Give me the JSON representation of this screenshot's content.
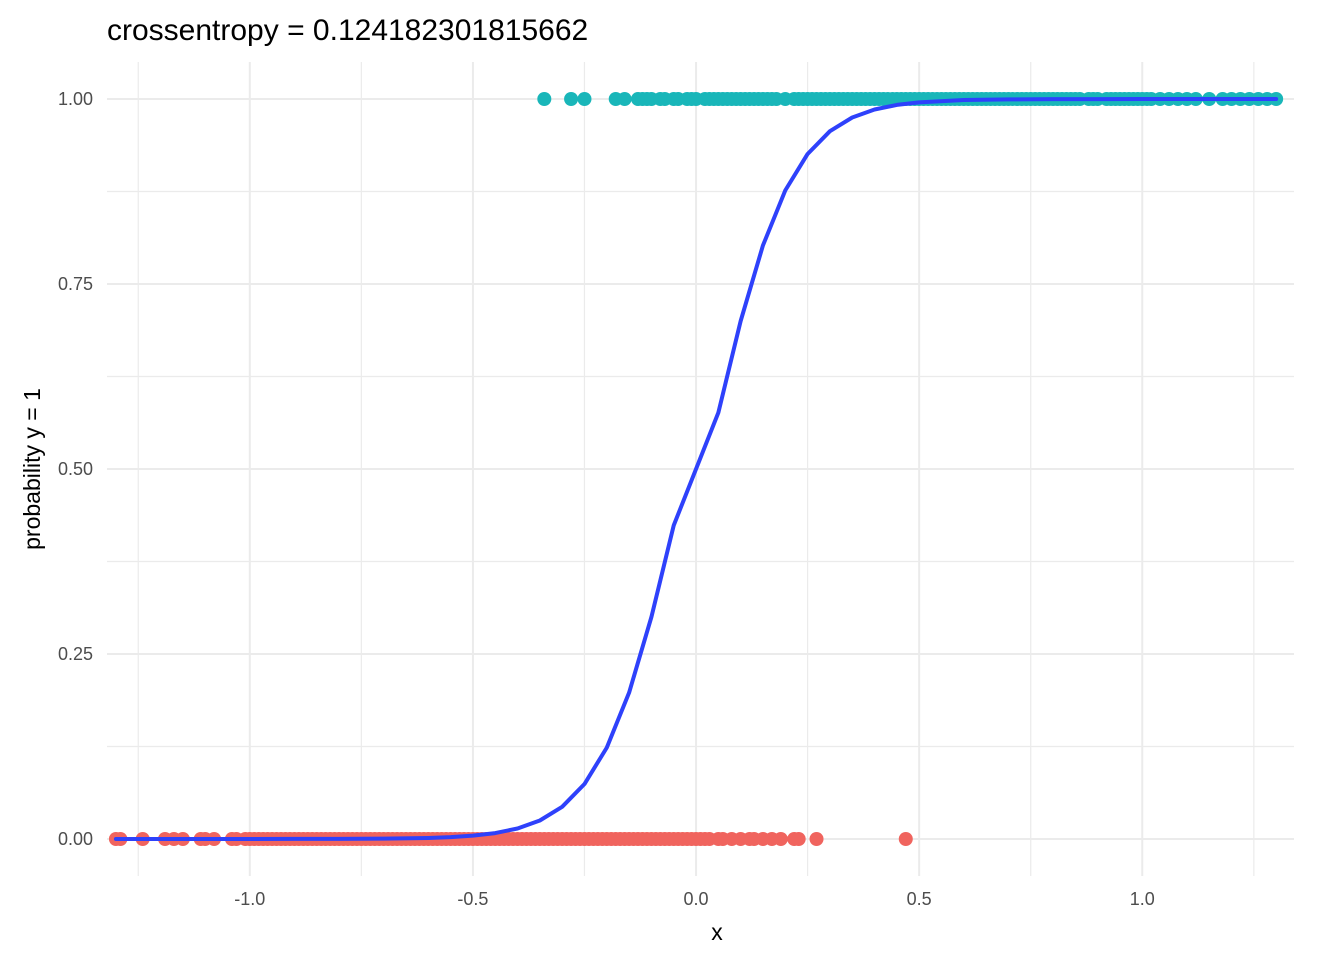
{
  "chart_data": {
    "type": "scatter",
    "title": "crossentropy = 0.124182301815662",
    "xlabel": "x",
    "ylabel": "probability y = 1",
    "xlim": [
      -1.32,
      1.34
    ],
    "ylim": [
      -0.05,
      1.05
    ],
    "x_ticks": [
      -1.0,
      -0.5,
      0.0,
      0.5,
      1.0
    ],
    "x_tick_labels": [
      "-1.0",
      "-0.5",
      "0.0",
      "0.5",
      "1.0"
    ],
    "y_ticks": [
      0.0,
      0.25,
      0.5,
      0.75,
      1.0
    ],
    "y_tick_labels": [
      "0.00",
      "0.25",
      "0.50",
      "0.75",
      "1.00"
    ],
    "grid": true,
    "legend": "none",
    "colors": {
      "class_1": "#19B6B9",
      "class_0": "#F0645E",
      "curve": "#2E41FB",
      "grid": "#EBEBEB"
    },
    "series": [
      {
        "kind": "points",
        "y": 1,
        "x": [
          -0.34,
          -0.28,
          -0.25,
          -0.18,
          -0.16,
          -0.13,
          -0.12,
          -0.11,
          -0.1,
          -0.08,
          -0.07,
          -0.05,
          -0.04,
          -0.02,
          -0.01,
          0.0,
          0.02,
          0.03,
          0.04,
          0.05,
          0.06,
          0.07,
          0.08,
          0.09,
          0.1,
          0.11,
          0.12,
          0.13,
          0.14,
          0.15,
          0.16,
          0.17,
          0.18,
          0.2,
          0.22,
          0.23,
          0.24,
          0.25,
          0.26,
          0.27,
          0.28,
          0.29,
          0.3,
          0.31,
          0.32,
          0.33,
          0.34,
          0.35,
          0.36,
          0.37,
          0.38,
          0.39,
          0.4,
          0.41,
          0.42,
          0.43,
          0.44,
          0.45,
          0.46,
          0.47,
          0.48,
          0.49,
          0.5,
          0.51,
          0.52,
          0.53,
          0.54,
          0.55,
          0.56,
          0.57,
          0.58,
          0.59,
          0.6,
          0.61,
          0.62,
          0.63,
          0.64,
          0.65,
          0.66,
          0.67,
          0.68,
          0.69,
          0.7,
          0.71,
          0.72,
          0.73,
          0.74,
          0.75,
          0.76,
          0.77,
          0.78,
          0.79,
          0.8,
          0.81,
          0.82,
          0.83,
          0.84,
          0.85,
          0.86,
          0.88,
          0.89,
          0.9,
          0.92,
          0.93,
          0.94,
          0.95,
          0.96,
          0.97,
          0.98,
          0.99,
          1.0,
          1.01,
          1.02,
          1.04,
          1.06,
          1.08,
          1.1,
          1.12,
          1.15,
          1.18,
          1.2,
          1.22,
          1.24,
          1.26,
          1.28,
          1.3
        ]
      },
      {
        "kind": "points",
        "y": 0,
        "x": [
          -1.3,
          -1.29,
          -1.24,
          -1.19,
          -1.17,
          -1.15,
          -1.11,
          -1.1,
          -1.08,
          -1.04,
          -1.03,
          -1.01,
          -1.0,
          -0.99,
          -0.98,
          -0.97,
          -0.96,
          -0.95,
          -0.94,
          -0.93,
          -0.92,
          -0.91,
          -0.9,
          -0.89,
          -0.88,
          -0.87,
          -0.86,
          -0.85,
          -0.84,
          -0.83,
          -0.82,
          -0.81,
          -0.8,
          -0.79,
          -0.78,
          -0.77,
          -0.76,
          -0.75,
          -0.74,
          -0.73,
          -0.72,
          -0.71,
          -0.7,
          -0.69,
          -0.68,
          -0.67,
          -0.66,
          -0.65,
          -0.64,
          -0.63,
          -0.62,
          -0.61,
          -0.6,
          -0.59,
          -0.58,
          -0.57,
          -0.56,
          -0.55,
          -0.54,
          -0.53,
          -0.52,
          -0.51,
          -0.5,
          -0.49,
          -0.48,
          -0.47,
          -0.46,
          -0.45,
          -0.44,
          -0.43,
          -0.42,
          -0.41,
          -0.4,
          -0.39,
          -0.38,
          -0.37,
          -0.36,
          -0.35,
          -0.34,
          -0.33,
          -0.32,
          -0.31,
          -0.3,
          -0.29,
          -0.28,
          -0.27,
          -0.26,
          -0.25,
          -0.24,
          -0.23,
          -0.22,
          -0.21,
          -0.2,
          -0.19,
          -0.18,
          -0.17,
          -0.16,
          -0.15,
          -0.14,
          -0.13,
          -0.12,
          -0.11,
          -0.1,
          -0.09,
          -0.08,
          -0.07,
          -0.06,
          -0.05,
          -0.04,
          -0.03,
          -0.02,
          -0.01,
          0.0,
          0.01,
          0.02,
          0.03,
          0.05,
          0.06,
          0.08,
          0.1,
          0.12,
          0.13,
          0.15,
          0.17,
          0.19,
          0.22,
          0.23,
          0.27,
          0.47
        ]
      },
      {
        "kind": "line",
        "x": [
          -1.3,
          -1.2,
          -1.1,
          -1.0,
          -0.9,
          -0.8,
          -0.7,
          -0.6,
          -0.55,
          -0.5,
          -0.45,
          -0.4,
          -0.35,
          -0.3,
          -0.25,
          -0.2,
          -0.15,
          -0.1,
          -0.05,
          0.0,
          0.05,
          0.1,
          0.15,
          0.2,
          0.25,
          0.3,
          0.35,
          0.4,
          0.45,
          0.5,
          0.6,
          0.7,
          0.8,
          0.9,
          1.0,
          1.1,
          1.2,
          1.3
        ],
        "y": [
          0.0,
          0.0,
          0.0,
          0.0,
          0.0001,
          0.0002,
          0.0005,
          0.0014,
          0.0025,
          0.0045,
          0.008,
          0.0142,
          0.025,
          0.0435,
          0.0743,
          0.1235,
          0.1978,
          0.3,
          0.4238,
          0.5,
          0.5762,
          0.7,
          0.8022,
          0.8765,
          0.9257,
          0.9565,
          0.975,
          0.9858,
          0.992,
          0.9955,
          0.9986,
          0.9995,
          0.9998,
          0.9999,
          1.0,
          1.0,
          1.0,
          1.0
        ]
      }
    ]
  }
}
